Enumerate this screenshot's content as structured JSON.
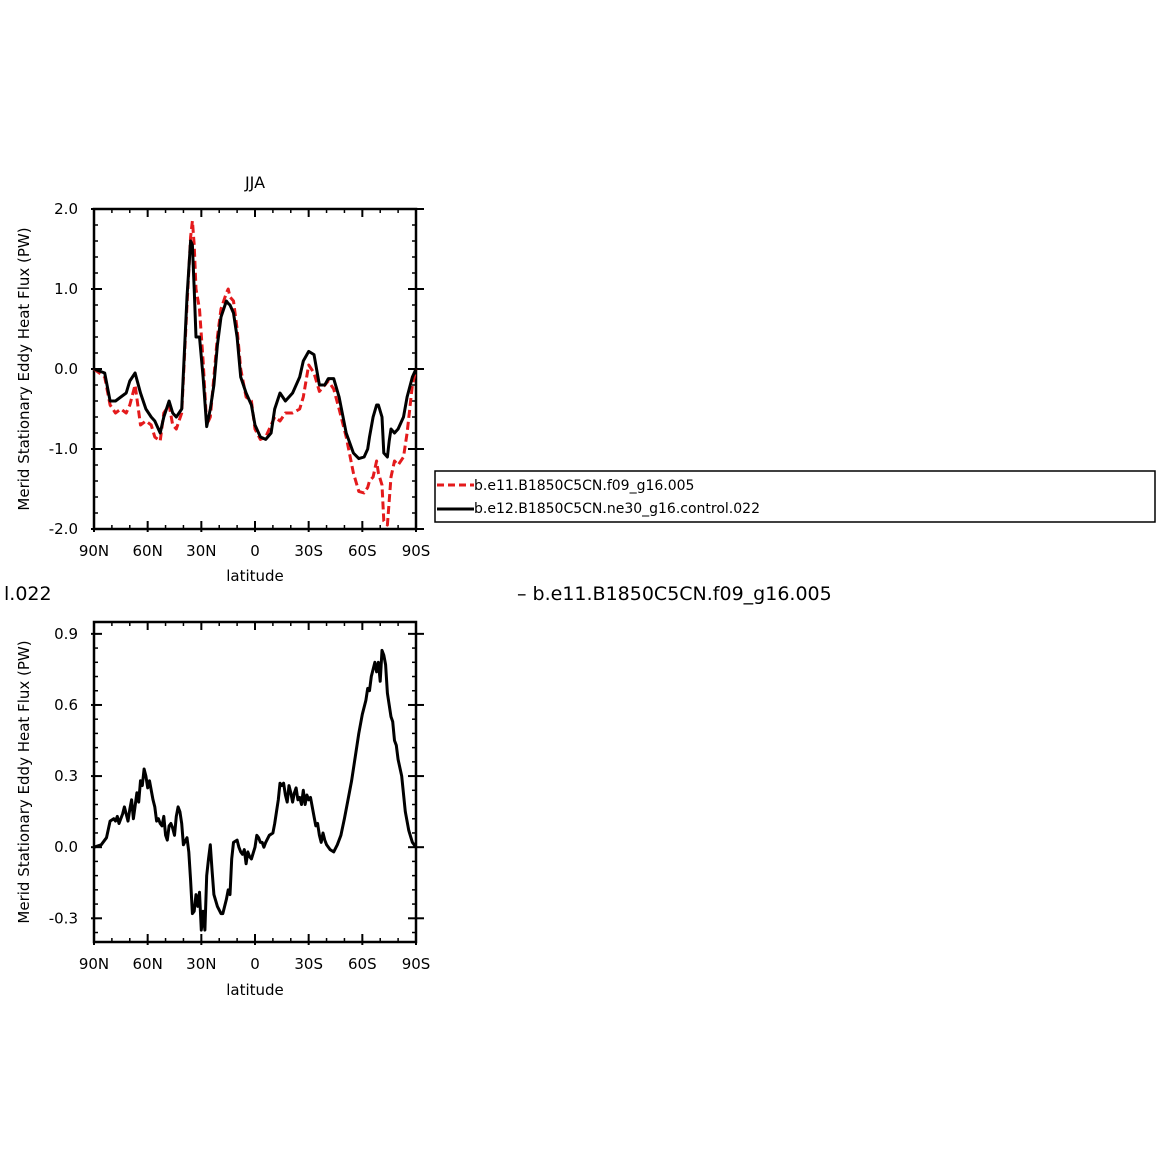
{
  "chart_data": [
    {
      "type": "line",
      "title": "JJA",
      "xlabel": "latitude",
      "ylabel": "Merid Stationary Eddy Heat Flux (PW)",
      "xlim": [
        -90,
        90
      ],
      "ylim": [
        -2.0,
        2.0
      ],
      "x_ticks": [
        -90,
        -60,
        -30,
        0,
        30,
        60,
        90
      ],
      "x_tick_labels": [
        "90N",
        "60N",
        "30N",
        "0",
        "30S",
        "60S",
        "90S"
      ],
      "y_ticks": [
        -2.0,
        -1.0,
        0.0,
        1.0,
        2.0
      ],
      "y_tick_labels": [
        "-2.0",
        "-1.0",
        "0.0",
        "1.0",
        "2.0"
      ],
      "legend": {
        "placement": "right",
        "entries": [
          {
            "name": "b.e11.B1850C5CN.f09_g16.005",
            "color": "#e41a1c",
            "dash": "dashed"
          },
          {
            "name": "b.e12.B1850C5CN.ne30_g16.control.022",
            "color": "#000000",
            "dash": "solid"
          }
        ]
      },
      "series": [
        {
          "name": "b.e11.B1850C5CN.f09_g16.005",
          "color": "#e41a1c",
          "dash": "dashed",
          "x": [
            -90,
            -84,
            -81,
            -78,
            -75,
            -72,
            -70,
            -67,
            -64,
            -61,
            -58,
            -56,
            -53,
            -51,
            -48,
            -46,
            -44,
            -41,
            -38,
            -36,
            -35,
            -34,
            -33,
            -31,
            -29,
            -27,
            -25,
            -23,
            -21,
            -19,
            -16,
            -15,
            -14,
            -12,
            -10,
            -8,
            -5,
            -2,
            0,
            3,
            6,
            9,
            11,
            14,
            17,
            21,
            25,
            27,
            30,
            33,
            36,
            39,
            41,
            44,
            47,
            51,
            55,
            58,
            61,
            63,
            64,
            66,
            68,
            69,
            71,
            72,
            74,
            75,
            76,
            78,
            80,
            83,
            85,
            88,
            90
          ],
          "y": [
            0.0,
            -0.1,
            -0.45,
            -0.55,
            -0.5,
            -0.55,
            -0.45,
            -0.2,
            -0.7,
            -0.65,
            -0.7,
            -0.85,
            -0.9,
            -0.55,
            -0.45,
            -0.7,
            -0.75,
            -0.55,
            0.8,
            1.65,
            1.85,
            1.55,
            1.0,
            0.75,
            0.1,
            -0.7,
            -0.6,
            -0.1,
            0.4,
            0.75,
            0.95,
            1.0,
            0.9,
            0.85,
            0.5,
            0.0,
            -0.35,
            -0.4,
            -0.75,
            -0.88,
            -0.85,
            -0.7,
            -0.6,
            -0.65,
            -0.55,
            -0.55,
            -0.5,
            -0.35,
            0.05,
            -0.05,
            -0.28,
            -0.2,
            -0.15,
            -0.25,
            -0.5,
            -0.85,
            -1.3,
            -1.53,
            -1.55,
            -1.48,
            -1.4,
            -1.35,
            -1.15,
            -1.3,
            -1.45,
            -1.9,
            -1.95,
            -1.65,
            -1.35,
            -1.15,
            -1.2,
            -1.1,
            -0.8,
            -0.2,
            0.0
          ]
        },
        {
          "name": "b.e12.B1850C5CN.ne30_g16.control.022",
          "color": "#000000",
          "dash": "solid",
          "x": [
            -90,
            -84,
            -81,
            -78,
            -75,
            -72,
            -70,
            -67,
            -64,
            -61,
            -58,
            -56,
            -53,
            -51,
            -48,
            -46,
            -44,
            -41,
            -38,
            -36,
            -35,
            -34,
            -33,
            -31,
            -29,
            -27,
            -25,
            -23,
            -21,
            -19,
            -16,
            -15,
            -14,
            -12,
            -10,
            -8,
            -5,
            -2,
            0,
            3,
            6,
            9,
            11,
            14,
            17,
            21,
            25,
            27,
            30,
            33,
            36,
            39,
            41,
            44,
            47,
            51,
            55,
            58,
            61,
            63,
            64,
            66,
            68,
            69,
            71,
            72,
            74,
            75,
            76,
            78,
            80,
            83,
            85,
            88,
            90
          ],
          "y": [
            0.0,
            -0.05,
            -0.4,
            -0.4,
            -0.35,
            -0.3,
            -0.15,
            -0.05,
            -0.3,
            -0.5,
            -0.6,
            -0.65,
            -0.8,
            -0.6,
            -0.4,
            -0.55,
            -0.6,
            -0.5,
            0.9,
            1.6,
            1.55,
            1.0,
            0.4,
            0.4,
            -0.1,
            -0.72,
            -0.5,
            -0.2,
            0.3,
            0.65,
            0.85,
            0.82,
            0.8,
            0.7,
            0.4,
            -0.1,
            -0.3,
            -0.45,
            -0.7,
            -0.85,
            -0.88,
            -0.8,
            -0.5,
            -0.3,
            -0.4,
            -0.3,
            -0.1,
            0.1,
            0.22,
            0.18,
            -0.2,
            -0.2,
            -0.12,
            -0.12,
            -0.35,
            -0.8,
            -1.05,
            -1.12,
            -1.1,
            -1.0,
            -0.85,
            -0.6,
            -0.45,
            -0.45,
            -0.6,
            -1.05,
            -1.1,
            -0.9,
            -0.75,
            -0.8,
            -0.75,
            -0.6,
            -0.35,
            -0.1,
            0.0
          ]
        }
      ]
    },
    {
      "type": "line",
      "title": "",
      "xlabel": "latitude",
      "ylabel": "Merid Stationary Eddy Heat Flux (PW)",
      "xlim": [
        -90,
        90
      ],
      "ylim": [
        -0.4,
        0.95
      ],
      "x_ticks": [
        -90,
        -60,
        -30,
        0,
        30,
        60,
        90
      ],
      "x_tick_labels": [
        "90N",
        "60N",
        "30N",
        "0",
        "30S",
        "60S",
        "90S"
      ],
      "y_ticks": [
        -0.3,
        0.0,
        0.3,
        0.6,
        0.9
      ],
      "y_tick_labels": [
        "-0.3",
        "0.0",
        "0.3",
        "0.6",
        "0.9"
      ],
      "series": [
        {
          "color": "#000000",
          "dash": "solid",
          "x": [
            -90,
            -86,
            -83,
            -81,
            -79,
            -78,
            -77,
            -76,
            -74,
            -73,
            -71,
            -70,
            -69,
            -68,
            -66,
            -65,
            -64,
            -63,
            -62,
            -61,
            -60,
            -59,
            -57,
            -56,
            -55,
            -54,
            -53,
            -52,
            -51,
            -50,
            -49,
            -48,
            -47,
            -46,
            -45,
            -44,
            -43,
            -42,
            -41,
            -40,
            -38,
            -37,
            -36,
            -35,
            -34,
            -33,
            -32,
            -31,
            -30,
            -29,
            -28,
            -27,
            -26,
            -25,
            -24,
            -23,
            -21,
            -19,
            -18,
            -16,
            -15,
            -14,
            -13,
            -12,
            -10,
            -9,
            -8,
            -7,
            -6,
            -5,
            -4,
            -3,
            -2,
            0,
            1,
            2,
            3,
            4,
            5,
            6,
            8,
            10,
            11,
            12,
            13,
            14,
            15,
            16,
            17,
            18,
            19,
            20,
            21,
            22,
            23,
            24,
            25,
            26,
            27,
            28,
            29,
            30,
            31,
            33,
            34,
            35,
            36,
            37,
            38,
            39,
            40,
            42,
            44,
            46,
            48,
            50,
            52,
            54,
            56,
            58,
            60,
            62,
            63,
            64,
            65,
            66,
            67,
            68,
            69,
            70,
            71,
            72,
            73,
            74,
            75,
            76,
            77,
            78,
            79,
            80,
            82,
            84,
            86,
            88,
            90
          ],
          "y": [
            0.0,
            0.01,
            0.04,
            0.11,
            0.12,
            0.11,
            0.13,
            0.1,
            0.14,
            0.17,
            0.11,
            0.16,
            0.2,
            0.12,
            0.23,
            0.19,
            0.28,
            0.26,
            0.33,
            0.3,
            0.25,
            0.28,
            0.2,
            0.17,
            0.11,
            0.12,
            0.1,
            0.09,
            0.13,
            0.05,
            0.03,
            0.09,
            0.1,
            0.08,
            0.05,
            0.13,
            0.17,
            0.15,
            0.1,
            0.01,
            0.04,
            -0.02,
            -0.14,
            -0.28,
            -0.27,
            -0.2,
            -0.25,
            -0.19,
            -0.35,
            -0.27,
            -0.35,
            -0.12,
            -0.05,
            0.01,
            -0.1,
            -0.2,
            -0.25,
            -0.28,
            -0.28,
            -0.22,
            -0.18,
            -0.2,
            -0.05,
            0.02,
            0.03,
            0.0,
            -0.02,
            -0.03,
            -0.01,
            -0.07,
            -0.02,
            -0.04,
            -0.05,
            0.0,
            0.05,
            0.04,
            0.02,
            0.02,
            0.0,
            0.02,
            0.05,
            0.06,
            0.1,
            0.15,
            0.2,
            0.27,
            0.26,
            0.27,
            0.22,
            0.19,
            0.26,
            0.23,
            0.19,
            0.23,
            0.25,
            0.2,
            0.21,
            0.18,
            0.24,
            0.18,
            0.22,
            0.2,
            0.21,
            0.13,
            0.09,
            0.1,
            0.05,
            0.02,
            0.06,
            0.03,
            0.01,
            -0.01,
            -0.02,
            0.01,
            0.05,
            0.12,
            0.2,
            0.28,
            0.38,
            0.48,
            0.56,
            0.62,
            0.67,
            0.66,
            0.72,
            0.75,
            0.78,
            0.74,
            0.78,
            0.7,
            0.83,
            0.81,
            0.77,
            0.65,
            0.6,
            0.55,
            0.53,
            0.45,
            0.43,
            0.37,
            0.3,
            0.15,
            0.07,
            0.02,
            0.0
          ]
        }
      ]
    }
  ],
  "floating_texts": {
    "left_fragment": "l.022",
    "right_legend": "– b.e11.B1850C5CN.f09_g16.005"
  }
}
